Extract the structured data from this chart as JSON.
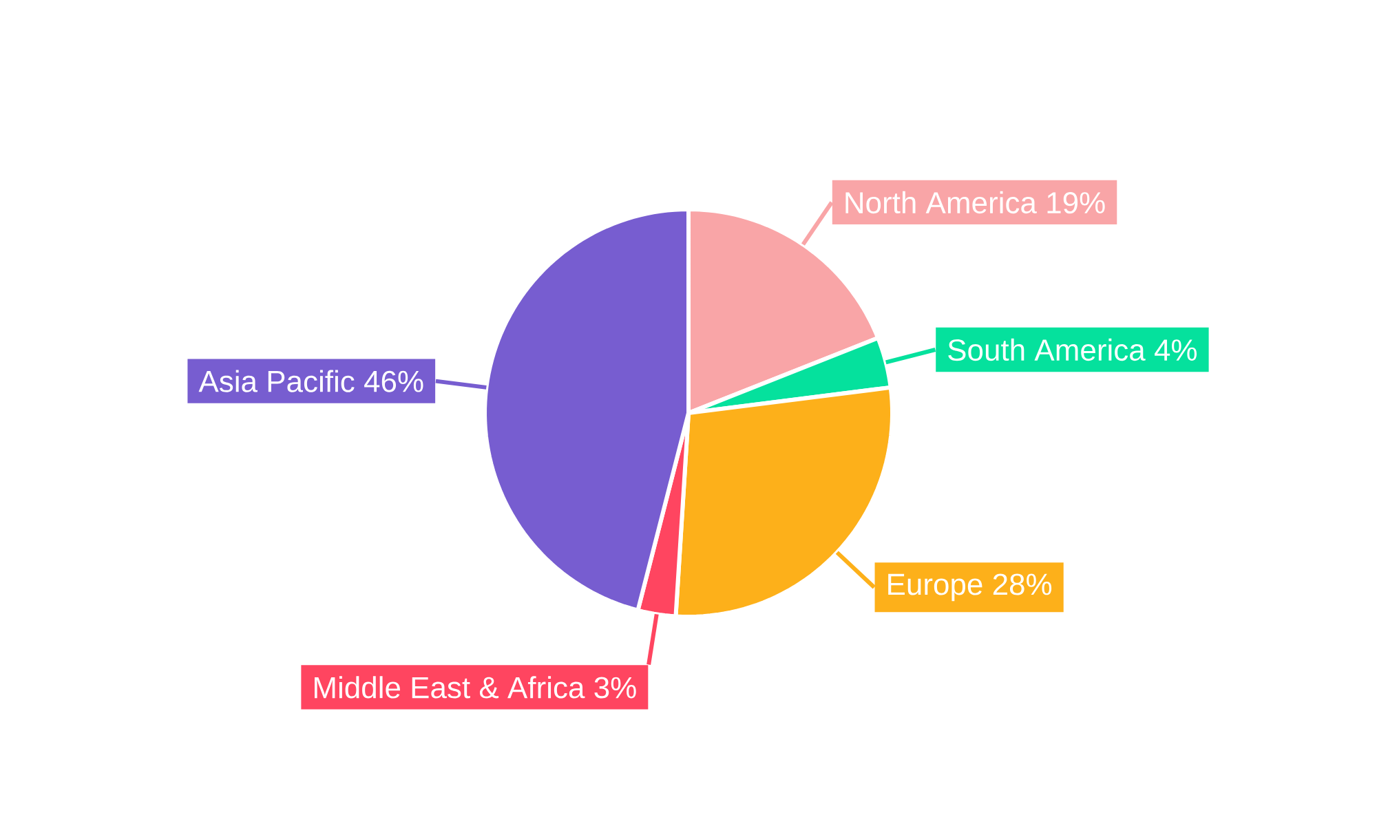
{
  "chart_data": {
    "type": "pie",
    "categories": [
      "North America",
      "South America",
      "Europe",
      "Middle East & Africa",
      "Asia Pacific"
    ],
    "values": [
      19,
      4,
      28,
      3,
      46
    ],
    "value_labels": [
      "19%",
      "4%",
      "28%",
      "3%",
      "46%"
    ],
    "colors": [
      "#f9a5a7",
      "#05e19d",
      "#fdb01a",
      "#ff4560",
      "#775dd0"
    ]
  }
}
